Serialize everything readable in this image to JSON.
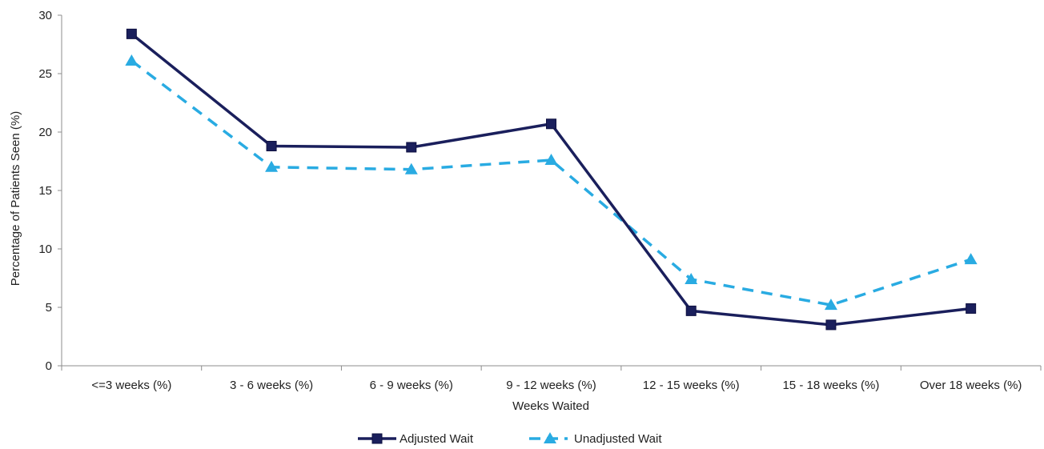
{
  "chart_data": {
    "type": "line",
    "title": "",
    "xlabel": "Weeks Waited",
    "ylabel": "Percentage of Patients Seen (%)",
    "ylim": [
      0,
      30
    ],
    "yticks": [
      0,
      5,
      10,
      15,
      20,
      25,
      30
    ],
    "grid": false,
    "legend_position": "bottom",
    "categories": [
      "<=3 weeks (%)",
      "3 - 6 weeks (%)",
      "6 - 9 weeks (%)",
      "9 - 12 weeks (%)",
      "12 - 15 weeks (%)",
      "15 - 18 weeks (%)",
      "Over 18 weeks (%)"
    ],
    "series": [
      {
        "name": "Adjusted Wait",
        "values": [
          28.4,
          18.8,
          18.7,
          20.7,
          4.7,
          3.5,
          4.9
        ],
        "color": "#1a1f5c",
        "line_style": "solid",
        "marker": "square"
      },
      {
        "name": "Unadjusted Wait",
        "values": [
          26.1,
          17.0,
          16.8,
          17.6,
          7.4,
          5.2,
          9.1
        ],
        "color": "#29abe2",
        "line_style": "dashed",
        "marker": "triangle"
      }
    ]
  }
}
